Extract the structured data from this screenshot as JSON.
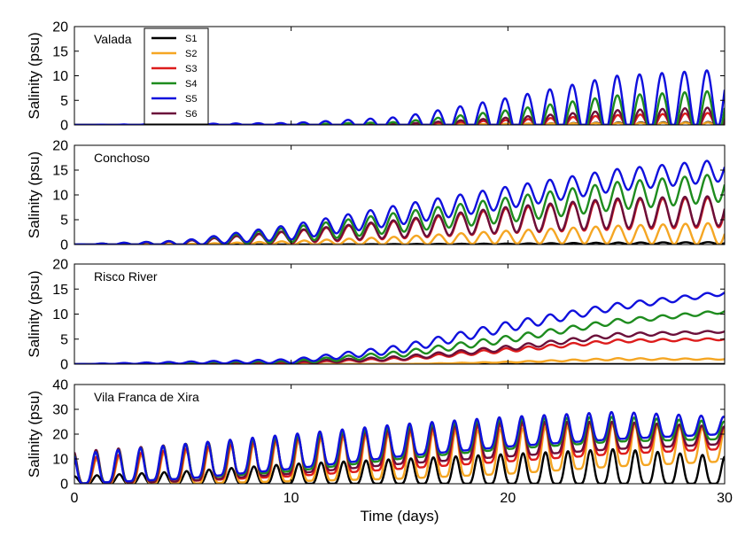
{
  "chart_data": {
    "type": "line",
    "xlabel": "Time (days)",
    "ylabel": "Salinity (psu)",
    "xlim": [
      0,
      30
    ],
    "xticks": [
      0,
      10,
      20,
      30
    ],
    "legend": {
      "placement": "top-left of first panel",
      "entries": [
        {
          "name": "S1",
          "color": "#000000"
        },
        {
          "name": "S2",
          "color": "#f5a623"
        },
        {
          "name": "S3",
          "color": "#dd1c1c"
        },
        {
          "name": "S4",
          "color": "#1e8c1e"
        },
        {
          "name": "S5",
          "color": "#1010dd"
        },
        {
          "name": "S6",
          "color": "#6b0f3a"
        }
      ]
    },
    "panels": [
      {
        "label": "Valada",
        "ylim": [
          0,
          20
        ],
        "yticks": [
          0,
          5,
          10,
          15,
          20
        ],
        "series": [
          {
            "name": "S1",
            "color": "#000000",
            "days": [
              0,
              10,
              15,
              20,
              25,
              30
            ],
            "mean": [
              0,
              0,
              0,
              0,
              0,
              0
            ],
            "amp": [
              0,
              0,
              0,
              0.2,
              0.5,
              0.6
            ]
          },
          {
            "name": "S2",
            "color": "#f5a623",
            "days": [
              0,
              10,
              15,
              20,
              25,
              30
            ],
            "mean": [
              0,
              0,
              0,
              0,
              0,
              0
            ],
            "amp": [
              0,
              0,
              0,
              0.2,
              0.4,
              0.5
            ]
          },
          {
            "name": "S3",
            "color": "#dd1c1c",
            "days": [
              0,
              10,
              15,
              20,
              25,
              30
            ],
            "mean": [
              0,
              0,
              0,
              0.2,
              0.5,
              0.7
            ],
            "amp": [
              0,
              0,
              0.1,
              0.8,
              1.5,
              1.8
            ]
          },
          {
            "name": "S6",
            "color": "#6b0f3a",
            "days": [
              0,
              10,
              15,
              20,
              25,
              30
            ],
            "mean": [
              0,
              0,
              0,
              0.3,
              0.8,
              1
            ],
            "amp": [
              0,
              0,
              0.2,
              1.2,
              2.2,
              2.6
            ]
          },
          {
            "name": "S4",
            "color": "#1e8c1e",
            "days": [
              0,
              10,
              15,
              20,
              25,
              30
            ],
            "mean": [
              0,
              0,
              0.1,
              0.8,
              2,
              2.5
            ],
            "amp": [
              0,
              0.1,
              0.5,
              2.2,
              4,
              4.5
            ]
          },
          {
            "name": "S5",
            "color": "#1010dd",
            "days": [
              0,
              10,
              15,
              20,
              25,
              30
            ],
            "mean": [
              0,
              0.1,
              0.4,
              2,
              4.5,
              5.5
            ],
            "amp": [
              0,
              0.3,
              1.2,
              3.5,
              5.5,
              5.8
            ]
          }
        ]
      },
      {
        "label": "Conchoso",
        "ylim": [
          0,
          20
        ],
        "yticks": [
          0,
          5,
          10,
          15,
          20
        ],
        "series": [
          {
            "name": "S1",
            "color": "#000000",
            "days": [
              0,
              10,
              20,
              25,
              30
            ],
            "mean": [
              0,
              0,
              0.1,
              0.2,
              0.3
            ],
            "amp": [
              0,
              0,
              0.1,
              0.2,
              0.2
            ]
          },
          {
            "name": "S2",
            "color": "#f5a623",
            "days": [
              0,
              5,
              10,
              15,
              20,
              25,
              30
            ],
            "mean": [
              0,
              0,
              0.3,
              0.8,
              1.5,
              2,
              2.2
            ],
            "amp": [
              0,
              0.1,
              0.4,
              0.8,
              1.3,
              1.8,
              2.2
            ]
          },
          {
            "name": "S3",
            "color": "#dd1c1c",
            "days": [
              0,
              5,
              10,
              15,
              20,
              25,
              30
            ],
            "mean": [
              0,
              0.2,
              1.5,
              3,
              4.8,
              6,
              6.5
            ],
            "amp": [
              0,
              0.5,
              1.2,
              1.8,
              2.5,
              3,
              3
            ]
          },
          {
            "name": "S6",
            "color": "#6b0f3a",
            "days": [
              0,
              5,
              10,
              15,
              20,
              25,
              30
            ],
            "mean": [
              0,
              0.2,
              1.6,
              3.2,
              5,
              6.3,
              6.8
            ],
            "amp": [
              0,
              0.5,
              1.2,
              1.8,
              2.6,
              3,
              3
            ]
          },
          {
            "name": "S4",
            "color": "#1e8c1e",
            "days": [
              0,
              5,
              10,
              15,
              20,
              25,
              30
            ],
            "mean": [
              0,
              0.3,
              2,
              4.5,
              7,
              9.8,
              11.5
            ],
            "amp": [
              0,
              0.5,
              1.5,
              2,
              2.5,
              2.8,
              2.8
            ]
          },
          {
            "name": "S5",
            "color": "#1010dd",
            "days": [
              0,
              5,
              10,
              15,
              20,
              25,
              30
            ],
            "mean": [
              0,
              0.3,
              2.5,
              6,
              9.5,
              13,
              15
            ],
            "amp": [
              0,
              0.5,
              1.5,
              2,
              2.2,
              2.2,
              2.2
            ]
          }
        ]
      },
      {
        "label": "Risco River",
        "ylim": [
          0,
          20
        ],
        "yticks": [
          0,
          5,
          10,
          15,
          20
        ],
        "series": [
          {
            "name": "S1",
            "color": "#000000",
            "days": [
              0,
              30
            ],
            "mean": [
              0,
              0
            ],
            "amp": [
              0,
              0
            ]
          },
          {
            "name": "S2",
            "color": "#f5a623",
            "days": [
              0,
              15,
              20,
              25,
              30
            ],
            "mean": [
              0,
              0,
              0.4,
              1,
              1
            ],
            "amp": [
              0,
              0,
              0.1,
              0.2,
              0.1
            ]
          },
          {
            "name": "S3",
            "color": "#dd1c1c",
            "days": [
              0,
              10,
              15,
              20,
              25,
              30
            ],
            "mean": [
              0,
              0.2,
              1,
              2.8,
              4.6,
              5
            ],
            "amp": [
              0,
              0.1,
              0.3,
              0.4,
              0.3,
              0.2
            ]
          },
          {
            "name": "S6",
            "color": "#6b0f3a",
            "days": [
              0,
              10,
              15,
              20,
              25,
              30
            ],
            "mean": [
              0,
              0.3,
              1.2,
              3.2,
              5.8,
              6.5
            ],
            "amp": [
              0,
              0.2,
              0.4,
              0.5,
              0.4,
              0.2
            ]
          },
          {
            "name": "S4",
            "color": "#1e8c1e",
            "days": [
              0,
              10,
              15,
              20,
              25,
              30
            ],
            "mean": [
              0,
              0.4,
              2,
              5,
              8.5,
              10.5
            ],
            "amp": [
              0,
              0.3,
              0.6,
              0.7,
              0.5,
              0.3
            ]
          },
          {
            "name": "S5",
            "color": "#1010dd",
            "days": [
              0,
              10,
              15,
              20,
              25,
              30
            ],
            "mean": [
              0,
              0.6,
              3,
              7.5,
              11.5,
              14.2
            ],
            "amp": [
              0,
              0.4,
              0.8,
              1,
              0.7,
              0.4
            ]
          }
        ]
      },
      {
        "label": "Vila Franca de Xira",
        "ylim": [
          0,
          40
        ],
        "yticks": [
          0,
          10,
          20,
          30,
          40
        ],
        "series": [
          {
            "name": "S1",
            "color": "#000000",
            "days": [
              0,
              5,
              10,
              15,
              20,
              25,
              30
            ],
            "peak": [
              3,
              5,
              8,
              10,
              12,
              14,
              11
            ],
            "floor": [
              0,
              0,
              0,
              0,
              0,
              0,
              0
            ]
          },
          {
            "name": "S2",
            "color": "#f5a623",
            "days": [
              0,
              5,
              10,
              15,
              20,
              25,
              30
            ],
            "peak": [
              9,
              13,
              17,
              20,
              22,
              24,
              22
            ],
            "floor": [
              0,
              0,
              1,
              2,
              4,
              7,
              9
            ]
          },
          {
            "name": "S3",
            "color": "#dd1c1c",
            "days": [
              0,
              5,
              10,
              15,
              20,
              25,
              30
            ],
            "peak": [
              10,
              14,
              18,
              21,
              24,
              25,
              23
            ],
            "floor": [
              0,
              1,
              3,
              6,
              9,
              12,
              14
            ]
          },
          {
            "name": "S6",
            "color": "#6b0f3a",
            "days": [
              0,
              5,
              10,
              15,
              20,
              25,
              30
            ],
            "peak": [
              13,
              16,
              19,
              22,
              25,
              25,
              23
            ],
            "floor": [
              0,
              1,
              4,
              8,
              11,
              14,
              16
            ]
          },
          {
            "name": "S4",
            "color": "#1e8c1e",
            "days": [
              0,
              5,
              10,
              15,
              20,
              25,
              30
            ],
            "peak": [
              12,
              16,
              19,
              23,
              26,
              27,
              25
            ],
            "floor": [
              0,
              2,
              5,
              10,
              14,
              17,
              18
            ]
          },
          {
            "name": "S5",
            "color": "#1010dd",
            "days": [
              0,
              5,
              10,
              15,
              20,
              25,
              30
            ],
            "peak": [
              12,
              16,
              20,
              24,
              27,
              29,
              27
            ],
            "floor": [
              0,
              2,
              6,
              11,
              15,
              18,
              20
            ]
          }
        ]
      }
    ]
  }
}
